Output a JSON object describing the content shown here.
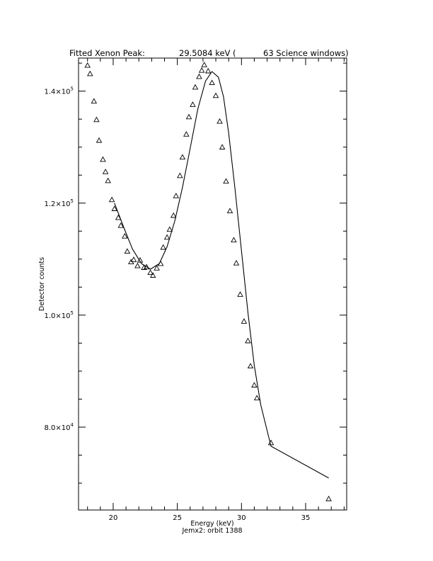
{
  "chart_data": {
    "type": "scatter",
    "title": {
      "label": "Fitted Xenon Peak:",
      "energy": "29.5084 keV (",
      "windows": "63 Science windows)"
    },
    "xlabel": "Energy (keV)",
    "caption": "Jemx2: orbit 1388",
    "ylabel": "Detector counts",
    "xlim": [
      17.3,
      38.2
    ],
    "ylim": [
      65200,
      145900
    ],
    "x_major_ticks": [
      {
        "value": 20,
        "label": "20"
      },
      {
        "value": 25,
        "label": "25"
      },
      {
        "value": 30,
        "label": "30"
      },
      {
        "value": 35,
        "label": "35"
      }
    ],
    "x_minor_ticks": [
      18,
      19,
      21,
      22,
      23,
      24,
      26,
      27,
      28,
      29,
      31,
      32,
      33,
      34,
      36,
      37,
      38
    ],
    "y_major_ticks": [
      {
        "value": 80000,
        "mantissa": "8.0×10",
        "exp": "4"
      },
      {
        "value": 100000,
        "mantissa": "1.0×10",
        "exp": "5"
      },
      {
        "value": 120000,
        "mantissa": "1.2×10",
        "exp": "5"
      },
      {
        "value": 140000,
        "mantissa": "1.4×10",
        "exp": "5"
      }
    ],
    "y_minor_ticks": [
      70000,
      75000,
      85000,
      90000,
      95000,
      105000,
      110000,
      115000,
      125000,
      130000,
      135000,
      145000
    ],
    "grid": false,
    "series": [
      {
        "marker": "triangle",
        "points": [
          [
            18.0,
            144600
          ],
          [
            18.2,
            143100
          ],
          [
            18.5,
            138200
          ],
          [
            18.7,
            134900
          ],
          [
            18.9,
            131200
          ],
          [
            19.2,
            127800
          ],
          [
            19.4,
            125600
          ],
          [
            19.6,
            124000
          ],
          [
            19.9,
            120600
          ],
          [
            20.1,
            119000
          ],
          [
            20.4,
            117400
          ],
          [
            20.6,
            116000
          ],
          [
            20.9,
            114100
          ],
          [
            21.1,
            111400
          ],
          [
            21.4,
            109500
          ],
          [
            21.6,
            109900
          ],
          [
            21.9,
            108800
          ],
          [
            22.1,
            109800
          ],
          [
            22.4,
            108500
          ],
          [
            22.6,
            108600
          ],
          [
            22.9,
            107600
          ],
          [
            23.1,
            107100
          ],
          [
            23.4,
            108400
          ],
          [
            23.7,
            109200
          ],
          [
            23.9,
            112100
          ],
          [
            24.2,
            113900
          ],
          [
            24.4,
            115300
          ],
          [
            24.7,
            117800
          ],
          [
            24.9,
            121300
          ],
          [
            25.2,
            124900
          ],
          [
            25.4,
            128200
          ],
          [
            25.7,
            132300
          ],
          [
            25.9,
            135400
          ],
          [
            26.2,
            137600
          ],
          [
            26.4,
            140700
          ],
          [
            26.7,
            142600
          ],
          [
            26.9,
            143700
          ],
          [
            27.1,
            144700
          ],
          [
            27.4,
            143600
          ],
          [
            27.7,
            141500
          ],
          [
            28.0,
            139200
          ],
          [
            28.3,
            134600
          ],
          [
            28.5,
            130000
          ],
          [
            28.8,
            123900
          ],
          [
            29.1,
            118600
          ],
          [
            29.4,
            113400
          ],
          [
            29.6,
            109300
          ],
          [
            29.9,
            103700
          ],
          [
            30.2,
            98900
          ],
          [
            30.5,
            95400
          ],
          [
            30.7,
            90900
          ],
          [
            31.0,
            87500
          ],
          [
            31.2,
            85200
          ],
          [
            32.3,
            77200
          ],
          [
            36.8,
            67200
          ]
        ]
      },
      {
        "marker": "line",
        "points": [
          [
            20.1,
            120000
          ],
          [
            20.8,
            115800
          ],
          [
            21.5,
            111800
          ],
          [
            22.2,
            109200
          ],
          [
            22.9,
            108200
          ],
          [
            23.6,
            109200
          ],
          [
            24.2,
            112200
          ],
          [
            24.8,
            116800
          ],
          [
            25.4,
            122800
          ],
          [
            26.0,
            129800
          ],
          [
            26.6,
            136800
          ],
          [
            27.2,
            141800
          ],
          [
            27.7,
            143500
          ],
          [
            28.2,
            142500
          ],
          [
            28.6,
            139000
          ],
          [
            29.0,
            132500
          ],
          [
            29.5,
            122500
          ],
          [
            30.0,
            111500
          ],
          [
            30.5,
            100500
          ],
          [
            31.0,
            91000
          ],
          [
            31.5,
            84000
          ],
          [
            32.3,
            76600
          ],
          [
            36.8,
            70900
          ]
        ]
      }
    ]
  }
}
